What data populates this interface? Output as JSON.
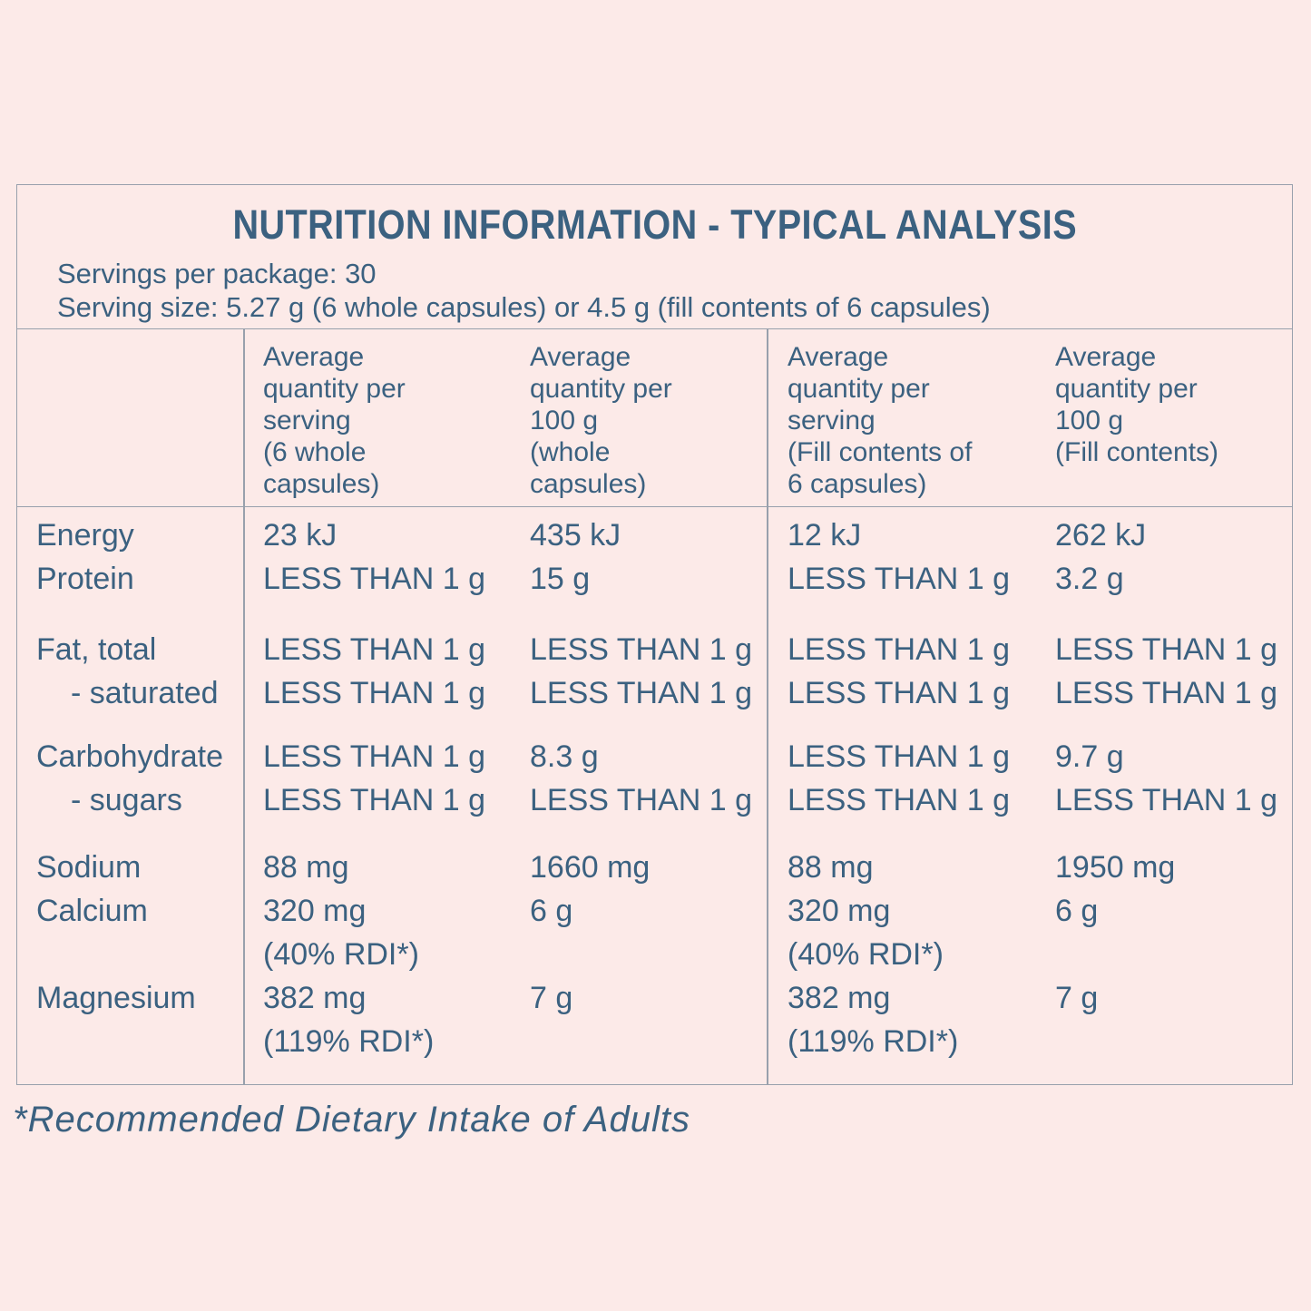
{
  "label": {
    "title": "NUTRITION INFORMATION - TYPICAL ANALYSIS",
    "servings_per_package": "Servings per package: 30",
    "serving_size": "Serving size: 5.27 g (6 whole capsules) or 4.5 g (fill contents of 6 capsules)",
    "footnote": "*Recommended Dietary Intake of Adults"
  },
  "colors": {
    "background": "#fceae8",
    "text": "#3b6180",
    "border": "#98a0ac"
  },
  "table": {
    "headers": {
      "col1": "Average\nquantity per\nserving\n(6 whole\ncapsules)",
      "col2": "Average\nquantity per\n100 g\n(whole\ncapsules)",
      "col3": "Average\nquantity per\nserving\n(Fill contents of\n6 capsules)",
      "col4": "Average\nquantity per\n100 g\n(Fill contents)"
    },
    "rows": [
      {
        "label": "Energy",
        "c1": "23 kJ",
        "c2": "435 kJ",
        "c3": "12 kJ",
        "c4": "262 kJ"
      },
      {
        "label": "Protein",
        "c1": "LESS THAN 1 g",
        "c2": "15 g",
        "c3": "LESS THAN 1 g",
        "c4": "3.2 g"
      },
      {
        "label": "Fat, total",
        "c1": "LESS THAN 1 g",
        "c2": "LESS THAN 1 g",
        "c3": "LESS THAN 1 g",
        "c4": "LESS THAN 1 g"
      },
      {
        "label": "- saturated",
        "c1": "LESS THAN 1 g",
        "c2": "LESS THAN 1 g",
        "c3": "LESS THAN 1 g",
        "c4": "LESS THAN 1 g"
      },
      {
        "label": "Carbohydrate",
        "c1": "LESS THAN 1 g",
        "c2": "8.3 g",
        "c3": "LESS THAN 1 g",
        "c4": "9.7 g"
      },
      {
        "label": "- sugars",
        "c1": "LESS THAN 1 g",
        "c2": "LESS THAN 1 g",
        "c3": "LESS THAN 1 g",
        "c4": "LESS THAN 1 g"
      },
      {
        "label": "Sodium",
        "c1": "88 mg",
        "c2": "1660 mg",
        "c3": "88 mg",
        "c4": "1950 mg"
      },
      {
        "label": "Calcium",
        "c1": "320 mg\n(40% RDI*)",
        "c2": "6 g",
        "c3": "320 mg\n(40% RDI*)",
        "c4": "6 g"
      },
      {
        "label": "Magnesium",
        "c1": "382 mg\n(119% RDI*)",
        "c2": "7 g",
        "c3": "382 mg\n(119% RDI*)",
        "c4": "7 g"
      }
    ]
  }
}
